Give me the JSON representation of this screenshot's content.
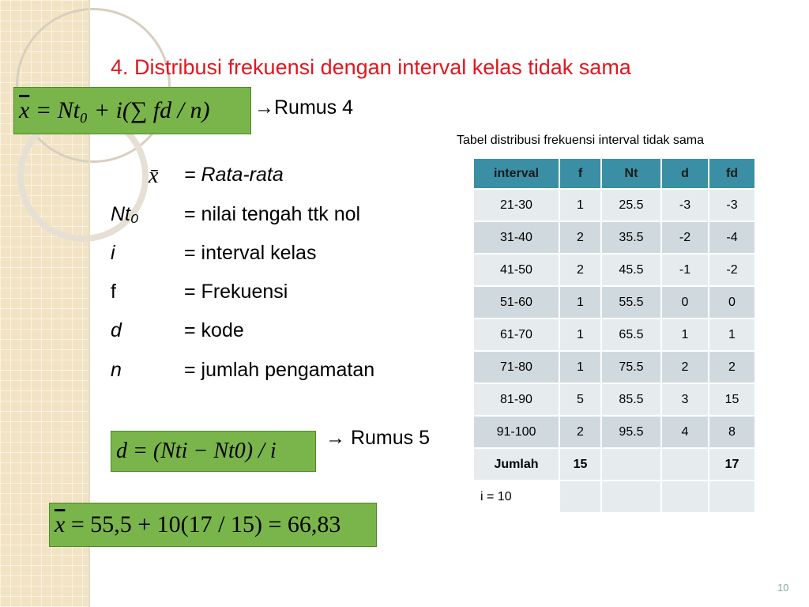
{
  "title": "4. Distribusi frekuensi dengan interval kelas tidak sama",
  "formula1": {
    "xbar": "x",
    "rest": "= Nt₀ + i(∑ fd / n)",
    "label": "→Rumus 4"
  },
  "definitions": [
    {
      "sym": "x̄",
      "text": "= Rata-rata"
    },
    {
      "sym": "Nt₀",
      "text": "= nilai tengah ttk nol"
    },
    {
      "sym": "i",
      "text": "= interval kelas"
    },
    {
      "sym": "f",
      "text": "= Frekuensi"
    },
    {
      "sym": "d",
      "text": "= kode"
    },
    {
      "sym": "n",
      "text": "= jumlah pengamatan"
    }
  ],
  "formula2": {
    "text": "d = (Nti − Nt0) / i",
    "label": "→ Rumus 5"
  },
  "formula3": {
    "xbar": "x",
    "rest": "= 55,5 + 10(17 / 15) = 66,83"
  },
  "table": {
    "caption": "Tabel distribusi frekuensi interval tidak sama",
    "headers": [
      "interval",
      "f",
      "Nt",
      "d",
      "fd"
    ],
    "rows": [
      [
        "21-30",
        "1",
        "25.5",
        "-3",
        "-3"
      ],
      [
        "31-40",
        "2",
        "35.5",
        "-2",
        "-4"
      ],
      [
        "41-50",
        "2",
        "45.5",
        "-1",
        "-2"
      ],
      [
        "51-60",
        "1",
        "55.5",
        "0",
        "0"
      ],
      [
        "61-70",
        "1",
        "65.5",
        "1",
        "1"
      ],
      [
        "71-80",
        "1",
        "75.5",
        "2",
        "2"
      ],
      [
        "81-90",
        "5",
        "85.5",
        "3",
        "15"
      ],
      [
        "91-100",
        "2",
        "95.5",
        "4",
        "8"
      ],
      [
        "Jumlah",
        "15",
        "",
        "",
        "17"
      ],
      [
        "i = 10",
        "",
        "",
        "",
        ""
      ]
    ]
  },
  "page_number": "10"
}
